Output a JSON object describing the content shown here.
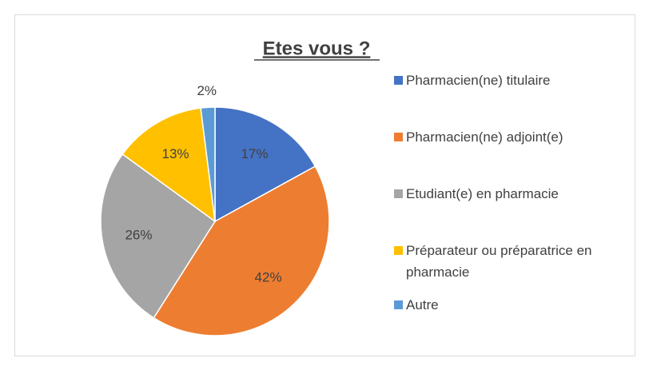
{
  "chart_data": {
    "type": "pie",
    "title": "Etes vous ?",
    "categories": [
      "Pharmacien(ne) titulaire",
      "Pharmacien(ne) adjoint(e)",
      "Etudiant(e) en pharmacie",
      "Préparateur ou préparatrice en pharmacie",
      "Autre"
    ],
    "values": [
      17,
      42,
      26,
      13,
      2
    ],
    "value_labels": [
      "17%",
      "42%",
      "26%",
      "13%",
      "2%"
    ],
    "colors": [
      "#4472c4",
      "#ed7d31",
      "#a5a5a5",
      "#ffc000",
      "#5b9bd5"
    ],
    "legend": "right"
  }
}
